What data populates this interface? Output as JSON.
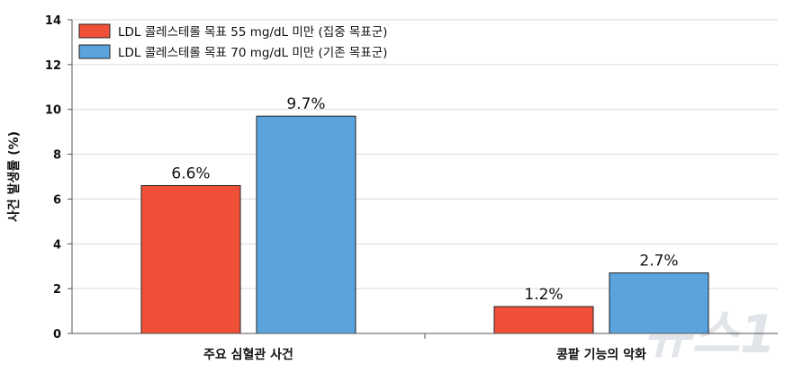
{
  "colors": {
    "series_1": "#f05038",
    "series_2": "#5ba3dc",
    "bar_stroke": "#222222",
    "grid": "#d9d9d9",
    "axis": "#555555",
    "text": "#111111",
    "watermark": "#c9ced6"
  },
  "watermark": {
    "text": "뉴스1"
  },
  "chart_data": {
    "type": "bar",
    "title": "",
    "xlabel": "",
    "ylabel": "사건 발생률 (%)",
    "ylim": [
      0,
      14
    ],
    "yticks": [
      0,
      2,
      4,
      6,
      8,
      10,
      12,
      14
    ],
    "grid": true,
    "legend_position": "top-left",
    "categories": [
      "주요 심혈관 사건",
      "콩팥 기능의 악화"
    ],
    "series": [
      {
        "name": "LDL 콜레스테롤 목표 55 mg/dL 미만 (집중 목표군)",
        "values": [
          6.6,
          1.2
        ],
        "labels": [
          "6.6%",
          "1.2%"
        ]
      },
      {
        "name": "LDL 콜레스테롤 목표 70 mg/dL 미만 (기존 목표군)",
        "values": [
          9.7,
          2.7
        ],
        "labels": [
          "9.7%",
          "2.7%"
        ]
      }
    ]
  }
}
